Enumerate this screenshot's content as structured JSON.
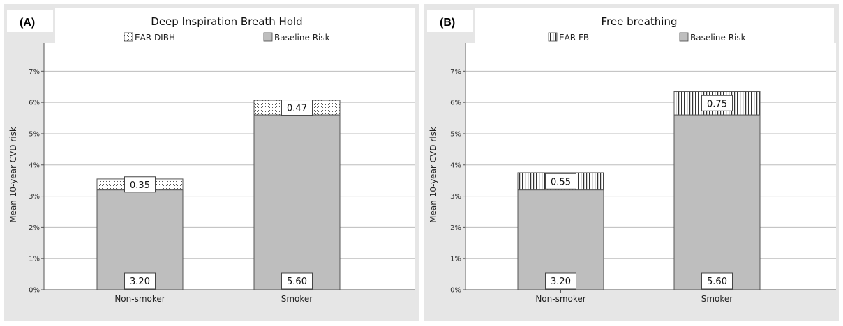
{
  "chart_data": [
    {
      "type": "bar",
      "stacked": true,
      "panel_label": "(A)",
      "title": "Deep Inspiration Breath Hold",
      "ylabel": "Mean 10-year CVD risk",
      "ylim": [
        0,
        7.9
      ],
      "yticks": [
        "0%",
        "1%",
        "2%",
        "3%",
        "4%",
        "5%",
        "6%",
        "7%"
      ],
      "grid": true,
      "legend_position": "top",
      "categories": [
        "Non-smoker",
        "Smoker"
      ],
      "series": [
        {
          "name": "Baseline Risk",
          "values": [
            3.2,
            5.6
          ],
          "labels": [
            "3.20",
            "5.60"
          ],
          "pattern": "solid"
        },
        {
          "name": "EAR DIBH",
          "values": [
            0.35,
            0.47
          ],
          "labels": [
            "0.35",
            "0.47"
          ],
          "pattern": "dots"
        }
      ],
      "colors": {
        "bar": "#bebebe",
        "plot_bg": "#ffffff",
        "outer_bg": "#e6e6e6"
      }
    },
    {
      "type": "bar",
      "stacked": true,
      "panel_label": "(B)",
      "title": "Free breathing",
      "ylabel": "Mean 10-year CVD risk",
      "ylim": [
        0,
        7.9
      ],
      "yticks": [
        "0%",
        "1%",
        "2%",
        "3%",
        "4%",
        "5%",
        "6%",
        "7%"
      ],
      "grid": true,
      "legend_position": "top",
      "categories": [
        "Non-smoker",
        "Smoker"
      ],
      "series": [
        {
          "name": "Baseline Risk",
          "values": [
            3.2,
            5.6
          ],
          "labels": [
            "3.20",
            "5.60"
          ],
          "pattern": "solid"
        },
        {
          "name": "EAR FB",
          "values": [
            0.55,
            0.75
          ],
          "labels": [
            "0.55",
            "0.75"
          ],
          "pattern": "vlines"
        }
      ],
      "colors": {
        "bar": "#bebebe",
        "plot_bg": "#ffffff",
        "outer_bg": "#e6e6e6"
      }
    }
  ]
}
